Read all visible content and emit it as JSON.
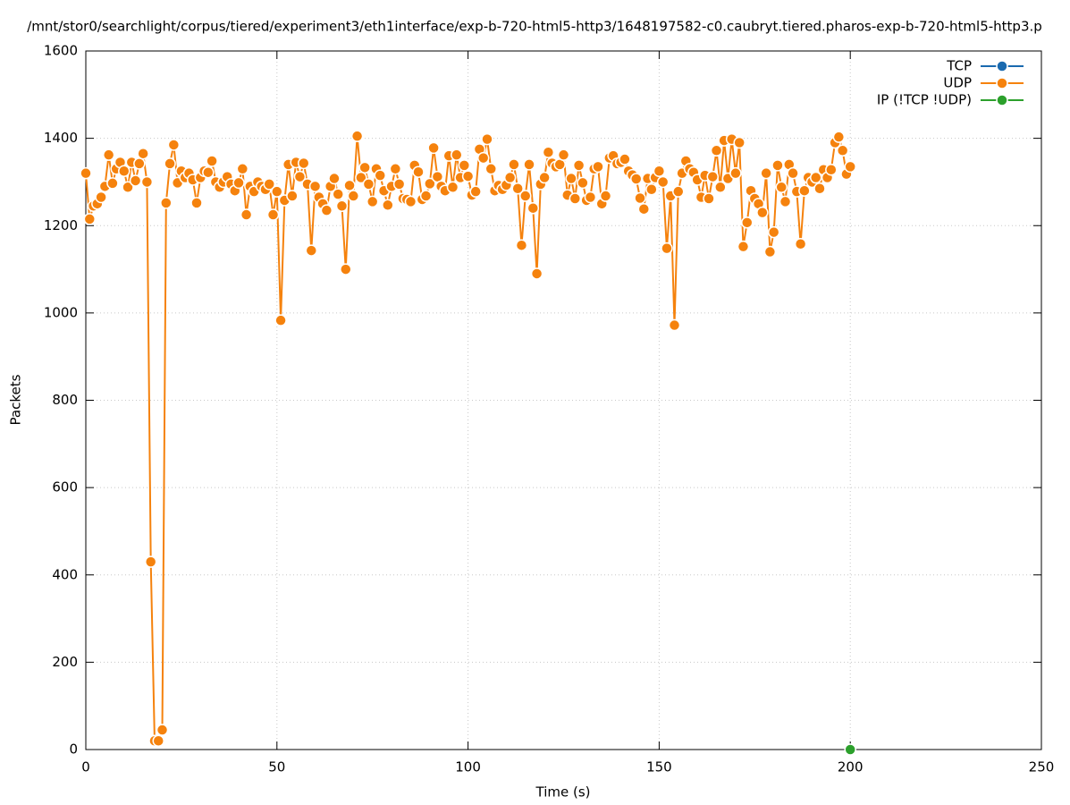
{
  "chart_data": {
    "type": "line",
    "title": "/mnt/stor0/searchlight/corpus/tiered/experiment3/eth1interface/exp-b-720-html5-http3/1648197582-c0.caubryt.tiered.pharos-exp-b-720-html5-http3.p",
    "x_label": "Time (s)",
    "y_label": "Packets",
    "xlim": [
      0,
      250
    ],
    "xticks": [
      0,
      50,
      100,
      150,
      200,
      250
    ],
    "ylim": [
      0,
      1600
    ],
    "yticks": [
      0,
      200,
      400,
      600,
      800,
      1000,
      1200,
      1400,
      1600
    ],
    "grid": true,
    "legend": "top-right",
    "series": [
      {
        "name": "TCP",
        "color": "#1a6aaf",
        "x": [],
        "values": []
      },
      {
        "name": "UDP",
        "color": "#f5820d",
        "x": [
          0,
          1,
          2,
          3,
          4,
          5,
          6,
          7,
          8,
          9,
          10,
          11,
          12,
          13,
          14,
          15,
          16,
          17,
          18,
          19,
          20,
          21,
          22,
          23,
          24,
          25,
          26,
          27,
          28,
          29,
          30,
          31,
          32,
          33,
          34,
          35,
          36,
          37,
          38,
          39,
          40,
          41,
          42,
          43,
          44,
          45,
          46,
          47,
          48,
          49,
          50,
          51,
          52,
          53,
          54,
          55,
          56,
          57,
          58,
          59,
          60,
          61,
          62,
          63,
          64,
          65,
          66,
          67,
          68,
          69,
          70,
          71,
          72,
          73,
          74,
          75,
          76,
          77,
          78,
          79,
          80,
          81,
          82,
          83,
          84,
          85,
          86,
          87,
          88,
          89,
          90,
          91,
          92,
          93,
          94,
          95,
          96,
          97,
          98,
          99,
          100,
          101,
          102,
          103,
          104,
          105,
          106,
          107,
          108,
          109,
          110,
          111,
          112,
          113,
          114,
          115,
          116,
          117,
          118,
          119,
          120,
          121,
          122,
          123,
          124,
          125,
          126,
          127,
          128,
          129,
          130,
          131,
          132,
          133,
          134,
          135,
          136,
          137,
          138,
          139,
          140,
          141,
          142,
          143,
          144,
          145,
          146,
          147,
          148,
          149,
          150,
          151,
          152,
          153,
          154,
          155,
          156,
          157,
          158,
          159,
          160,
          161,
          162,
          163,
          164,
          165,
          166,
          167,
          168,
          169,
          170,
          171,
          172,
          173,
          174,
          175,
          176,
          177,
          178,
          179,
          180,
          181,
          182,
          183,
          184,
          185,
          186,
          187,
          188,
          189,
          190,
          191,
          192,
          193,
          194,
          195,
          196,
          197,
          198,
          199,
          200
        ],
        "values": [
          1320,
          1215,
          1245,
          1250,
          1265,
          1290,
          1362,
          1297,
          1330,
          1345,
          1325,
          1288,
          1345,
          1303,
          1342,
          1365,
          1300,
          430,
          20,
          20,
          45,
          1252,
          1342,
          1385,
          1298,
          1325,
          1310,
          1320,
          1305,
          1252,
          1310,
          1325,
          1322,
          1348,
          1300,
          1288,
          1300,
          1312,
          1295,
          1280,
          1298,
          1330,
          1225,
          1290,
          1278,
          1300,
          1290,
          1283,
          1295,
          1225,
          1278,
          983,
          1258,
          1340,
          1268,
          1345,
          1312,
          1343,
          1295,
          1143,
          1290,
          1265,
          1250,
          1235,
          1290,
          1308,
          1272,
          1245,
          1100,
          1292,
          1268,
          1405,
          1310,
          1333,
          1295,
          1255,
          1330,
          1315,
          1280,
          1247,
          1290,
          1330,
          1295,
          1262,
          1260,
          1255,
          1338,
          1323,
          1260,
          1268,
          1296,
          1378,
          1312,
          1290,
          1280,
          1360,
          1288,
          1362,
          1310,
          1338,
          1313,
          1270,
          1278,
          1375,
          1355,
          1398,
          1330,
          1280,
          1292,
          1283,
          1293,
          1310,
          1340,
          1285,
          1155,
          1268,
          1340,
          1240,
          1090,
          1295,
          1310,
          1368,
          1343,
          1335,
          1340,
          1362,
          1270,
          1308,
          1262,
          1338,
          1298,
          1258,
          1265,
          1330,
          1335,
          1250,
          1268,
          1355,
          1360,
          1342,
          1345,
          1352,
          1325,
          1316,
          1307,
          1263,
          1238,
          1308,
          1283,
          1310,
          1325,
          1300,
          1148,
          1268,
          972,
          1278,
          1320,
          1348,
          1330,
          1322,
          1305,
          1265,
          1315,
          1262,
          1312,
          1372,
          1288,
          1395,
          1308,
          1398,
          1320,
          1390,
          1152,
          1207,
          1280,
          1262,
          1250,
          1230,
          1320,
          1140,
          1185,
          1338,
          1288,
          1255,
          1340,
          1320,
          1278,
          1158,
          1280,
          1310,
          1300,
          1310,
          1285,
          1328,
          1310,
          1328,
          1390,
          1403,
          1372,
          1318,
          1335
        ]
      },
      {
        "name": "IP (!TCP  !UDP)",
        "color": "#2ca02c",
        "x": [
          200
        ],
        "values": [
          0
        ]
      }
    ]
  }
}
